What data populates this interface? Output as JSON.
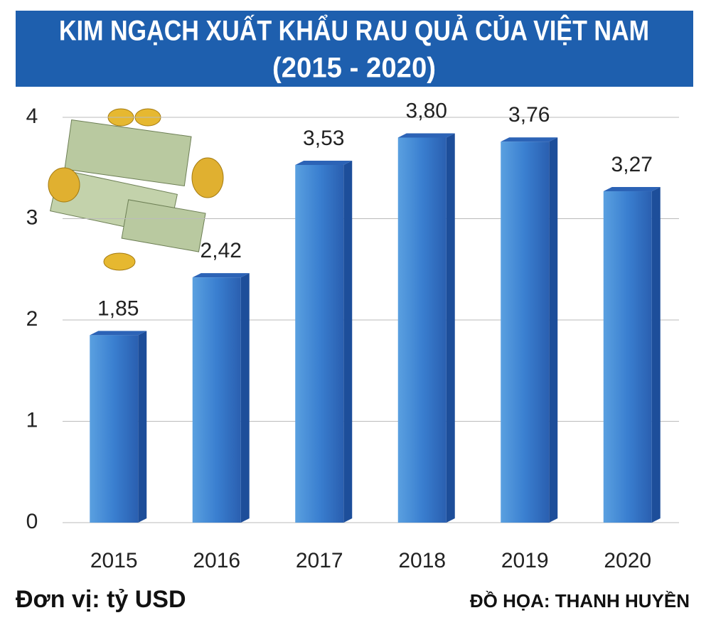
{
  "chart_data": {
    "type": "bar",
    "title": "KIM NGẠCH XUẤT KHẨU RAU QUẢ CỦA VIỆT NAM",
    "subtitle": "(2015 - 2020)",
    "categories": [
      "2015",
      "2016",
      "2017",
      "2018",
      "2019",
      "2020"
    ],
    "values": [
      1.85,
      2.42,
      3.53,
      3.8,
      3.76,
      3.27
    ],
    "value_labels": [
      "1,85",
      "2,42",
      "3,53",
      "3,80",
      "3,76",
      "3,27"
    ],
    "color": "#2f6fc4",
    "ylim": [
      0,
      4
    ],
    "yticks": [
      0,
      1,
      2,
      3,
      4
    ],
    "grid": true,
    "annotations": [
      "Đơn vị: tỷ USD",
      "ĐỒ HỌA: THANH HUYỀN"
    ]
  }
}
